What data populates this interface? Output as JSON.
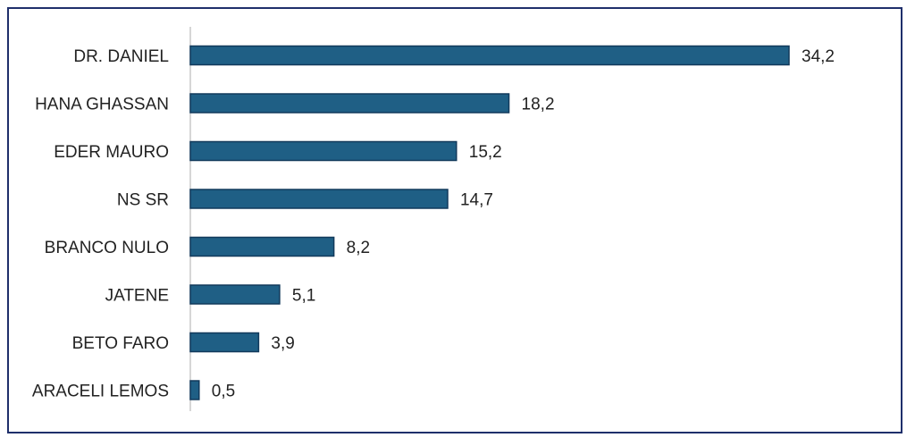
{
  "chart_data": {
    "type": "bar",
    "orientation": "horizontal",
    "categories": [
      "DR. DANIEL",
      "HANA GHASSAN",
      "EDER MAURO",
      "NS SR",
      "BRANCO NULO",
      "JATENE",
      "BETO FARO",
      "ARACELI LEMOS"
    ],
    "values": [
      34.2,
      18.2,
      15.2,
      14.7,
      8.2,
      5.1,
      3.9,
      0.5
    ],
    "value_labels": [
      "34,2",
      "18,2",
      "15,2",
      "14,7",
      "8,2",
      "5,1",
      "3,9",
      "0,5"
    ],
    "title": "",
    "xlabel": "",
    "ylabel": "",
    "xlim": [
      0,
      34.2
    ],
    "grid": false,
    "legend": "none",
    "bar_color": "#1f5f85",
    "bar_edge_color": "#123a5c"
  }
}
